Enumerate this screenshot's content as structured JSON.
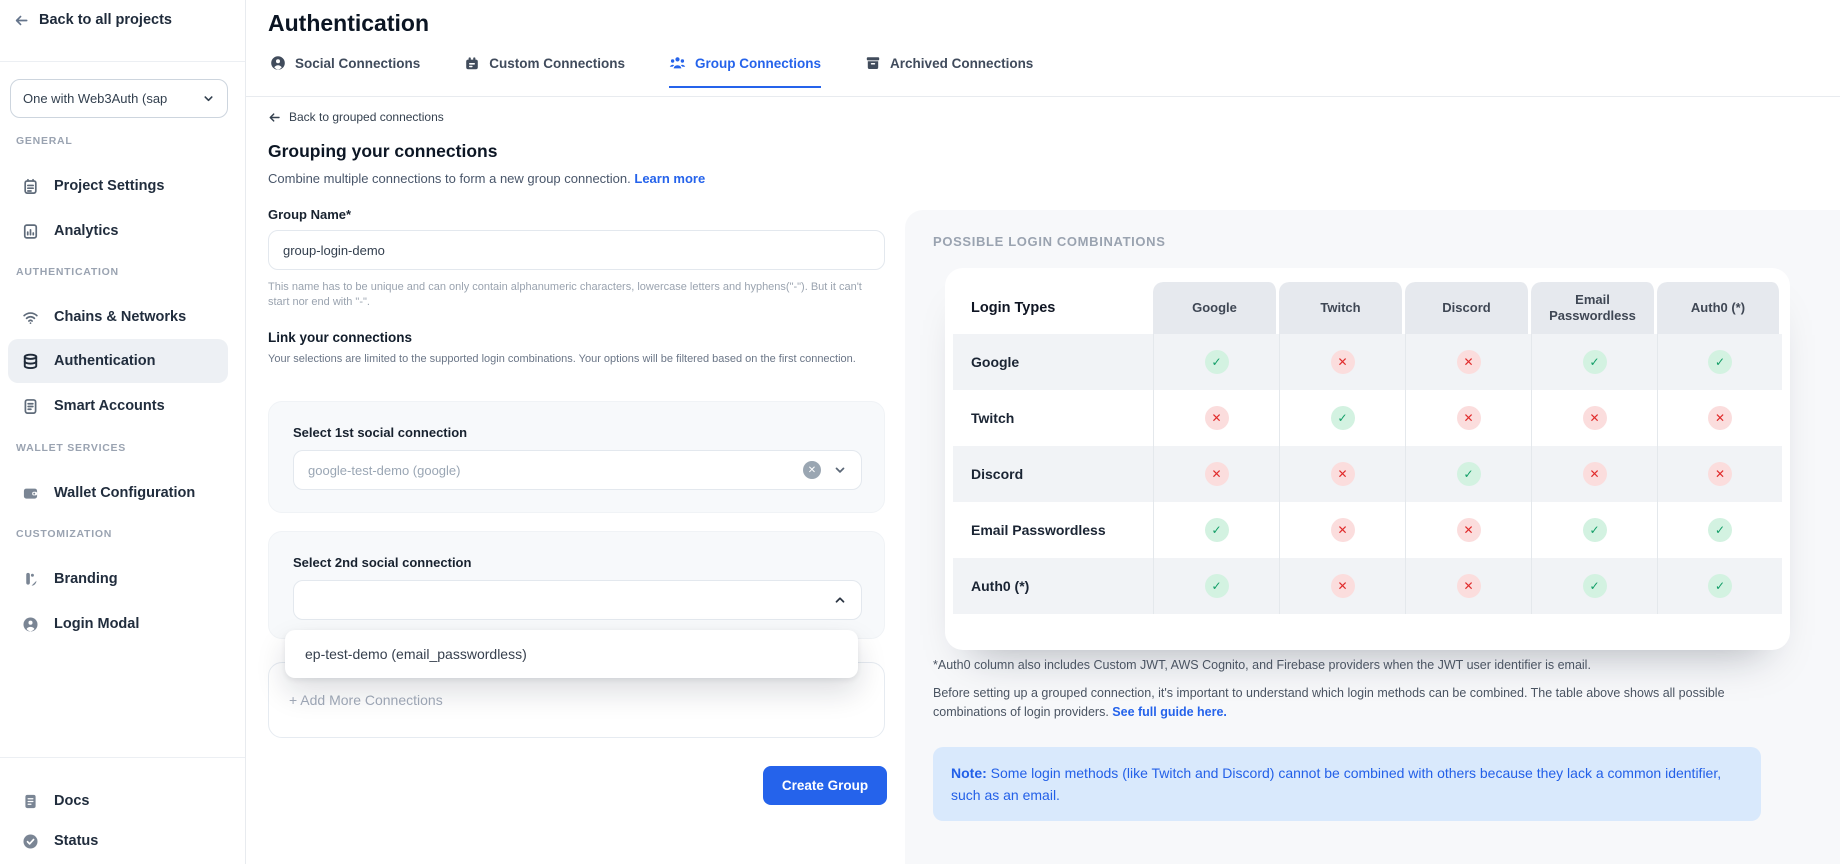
{
  "sidebar": {
    "back_link": "Back to all projects",
    "project_selector": {
      "value": "One with Web3Auth (sap"
    },
    "sections": [
      {
        "label": "GENERAL",
        "items": [
          {
            "label": "Project Settings"
          },
          {
            "label": "Analytics"
          }
        ]
      },
      {
        "label": "AUTHENTICATION",
        "items": [
          {
            "label": "Chains & Networks"
          },
          {
            "label": "Authentication"
          },
          {
            "label": "Smart Accounts"
          }
        ]
      },
      {
        "label": "WALLET SERVICES",
        "items": [
          {
            "label": "Wallet Configuration"
          }
        ]
      },
      {
        "label": "CUSTOMIZATION",
        "items": [
          {
            "label": "Branding"
          },
          {
            "label": "Login Modal"
          }
        ]
      }
    ],
    "footer_items": [
      {
        "label": "Docs"
      },
      {
        "label": "Status"
      }
    ]
  },
  "header": {
    "title": "Authentication",
    "tabs": [
      {
        "label": "Social Connections",
        "active": false
      },
      {
        "label": "Custom Connections",
        "active": false
      },
      {
        "label": "Group Connections",
        "active": true
      },
      {
        "label": "Archived Connections",
        "active": false
      }
    ]
  },
  "content": {
    "back_link": "Back to grouped connections",
    "heading": "Grouping your connections",
    "subtitle": "Combine multiple connections to form a new group connection.",
    "learn_more": "Learn more",
    "group_name": {
      "label": "Group Name*",
      "value": "group-login-demo",
      "helper": "This name has to be unique and can only contain alphanumeric characters, lowercase letters and hyphens(\"-\"). But it can't start nor end with \"-\"."
    },
    "link_section": {
      "heading": "Link your connections",
      "helper": "Your selections are limited to the supported login combinations. Your options will be filtered based on the first connection."
    },
    "select1": {
      "label": "Select 1st social connection",
      "value": "google-test-demo (google)"
    },
    "select2": {
      "label": "Select 2nd social connection",
      "value": "",
      "dropdown_option": "ep-test-demo (email_passwordless)"
    },
    "add_more": "+ Add More Connections",
    "create_button": "Create Group"
  },
  "combinations": {
    "heading": "POSSIBLE LOGIN COMBINATIONS",
    "columns": [
      "Login Types",
      "Google",
      "Twitch",
      "Discord",
      "Email Passwordless",
      "Auth0 (*)"
    ],
    "rows": [
      {
        "label": "Google",
        "values": [
          "yes",
          "no",
          "no",
          "yes",
          "yes"
        ]
      },
      {
        "label": "Twitch",
        "values": [
          "no",
          "yes",
          "no",
          "no",
          "no"
        ]
      },
      {
        "label": "Discord",
        "values": [
          "no",
          "no",
          "yes",
          "no",
          "no"
        ]
      },
      {
        "label": "Email Passwordless",
        "values": [
          "yes",
          "no",
          "no",
          "yes",
          "yes"
        ]
      },
      {
        "label": "Auth0 (*)",
        "values": [
          "yes",
          "no",
          "no",
          "yes",
          "yes"
        ]
      }
    ],
    "footnote": "*Auth0 column also includes Custom JWT, AWS Cognito, and Firebase providers when the JWT user identifier is email.",
    "description": "Before setting up a grouped connection, it's important to understand which login methods can be combined. The table above shows all possible combinations of login providers.",
    "guide_link": "See full guide here.",
    "note_label": "Note:",
    "note_text": "Some login methods (like Twitch and Discord) cannot be combined with others because they lack a common identifier, such as an email."
  },
  "colors": {
    "accent": "#2563eb",
    "success": "#16a34a",
    "danger": "#dc2626",
    "note_bg": "#d9e9fc"
  }
}
